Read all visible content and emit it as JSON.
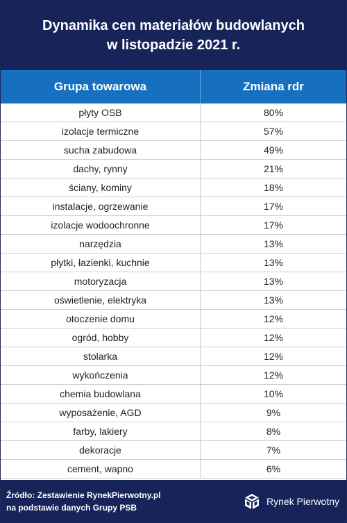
{
  "header": {
    "title_line1": "Dynamika cen materiałów budowlanych",
    "title_line2": "w listopadzie 2021 r."
  },
  "table": {
    "columns": [
      "Grupa towarowa",
      "Zmiana rdr"
    ],
    "rows": [
      [
        "płyty OSB",
        "80%"
      ],
      [
        "izolacje termiczne",
        "57%"
      ],
      [
        "sucha zabudowa",
        "49%"
      ],
      [
        "dachy, rynny",
        "21%"
      ],
      [
        "ściany, kominy",
        "18%"
      ],
      [
        "instalacje, ogrzewanie",
        "17%"
      ],
      [
        "izolacje wodoochronne",
        "17%"
      ],
      [
        "narzędzia",
        "13%"
      ],
      [
        "płytki, łazienki, kuchnie",
        "13%"
      ],
      [
        "motoryzacja",
        "13%"
      ],
      [
        "oświetlenie, elektryka",
        "13%"
      ],
      [
        "otoczenie domu",
        "12%"
      ],
      [
        "ogród, hobby",
        "12%"
      ],
      [
        "stolarka",
        "12%"
      ],
      [
        "wykończenia",
        "12%"
      ],
      [
        "chemia budowlana",
        "10%"
      ],
      [
        "wyposażenie, AGD",
        "9%"
      ],
      [
        "farby, lakiery",
        "8%"
      ],
      [
        "dekoracje",
        "7%"
      ],
      [
        "cement, wapno",
        "6%"
      ]
    ]
  },
  "chart_data": {
    "type": "table",
    "title": "Dynamika cen materiałów budowlanych w listopadzie 2021 r.",
    "columns": [
      "Grupa towarowa",
      "Zmiana rdr"
    ],
    "categories": [
      "płyty OSB",
      "izolacje termiczne",
      "sucha zabudowa",
      "dachy, rynny",
      "ściany, kominy",
      "instalacje, ogrzewanie",
      "izolacje wodoochronne",
      "narzędzia",
      "płytki, łazienki, kuchnie",
      "motoryzacja",
      "oświetlenie, elektryka",
      "otoczenie domu",
      "ogród, hobby",
      "stolarka",
      "wykończenia",
      "chemia budowlana",
      "wyposażenie, AGD",
      "farby, lakiery",
      "dekoracje",
      "cement, wapno"
    ],
    "values": [
      80,
      57,
      49,
      21,
      18,
      17,
      17,
      13,
      13,
      13,
      13,
      12,
      12,
      12,
      12,
      10,
      9,
      8,
      7,
      6
    ]
  },
  "footer": {
    "source_line1": "Źródło: Zestawienie RynekPierwotny.pl",
    "source_line2": "na podstawie danych Grupy PSB",
    "brand_name": "Rynek Pierwotny",
    "brand_icon": "cube-logo-icon"
  },
  "colors": {
    "navy": "#16245a",
    "header_blue": "#1670bf"
  }
}
